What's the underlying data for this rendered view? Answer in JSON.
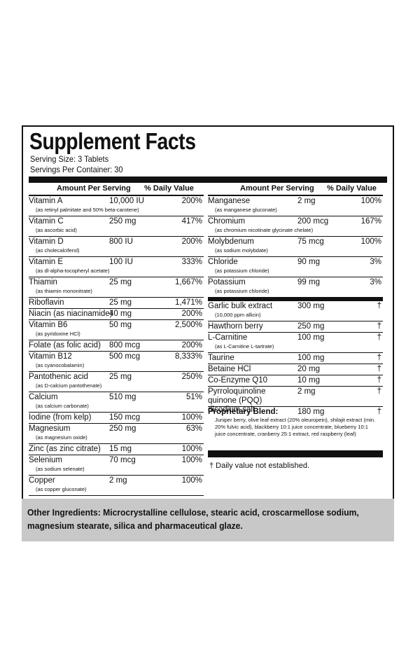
{
  "title": "Supplement Facts",
  "serving_size": "Serving Size: 3 Tablets",
  "servings_per_container": "Servings Per Container: 30",
  "header": {
    "amount": "Amount Per Serving",
    "dv": "% Daily Value"
  },
  "left": [
    {
      "name": "Vitamin A",
      "amount": "10,000 IU",
      "dv": "200%",
      "sub": "(as retinyl palmitate and 50% beta-carotene)"
    },
    {
      "name": "Vitamin C",
      "amount": "250 mg",
      "dv": "417%",
      "sub": "(as ascorbic acid)"
    },
    {
      "name": "Vitamin D",
      "amount": "800 IU",
      "dv": "200%",
      "sub": "(as cholecalciferol)"
    },
    {
      "name": "Vitamin E",
      "amount": "100 IU",
      "dv": "333%",
      "sub": "(as dl-alpha-tocopheryl acetate)"
    },
    {
      "name": "Thiamin",
      "amount": "25 mg",
      "dv": "1,667%",
      "sub": "(as thiamin mononitrate)"
    },
    {
      "name": "Riboflavin",
      "amount": "25 mg",
      "dv": "1,471%",
      "sub": ""
    },
    {
      "name": "Niacin (as niacinamide)",
      "amount": "40 mg",
      "dv": "200%",
      "sub": ""
    },
    {
      "name": "Vitamin B6",
      "amount": "50 mg",
      "dv": "2,500%",
      "sub": "(as pyridoxine HCl)"
    },
    {
      "name": "Folate (as folic acid)",
      "amount": "800 mcg",
      "dv": "200%",
      "sub": ""
    },
    {
      "name": "Vitamin B12",
      "amount": "500 mcg",
      "dv": "8,333%",
      "sub": "(as cyanocobalamin)"
    },
    {
      "name": "Pantothenic acid",
      "amount": "25 mg",
      "dv": "250%",
      "sub": "(as D-calcium pantothenate)"
    },
    {
      "name": "Calcium",
      "amount": "510 mg",
      "dv": "51%",
      "sub": "(as calcium carbonate)"
    },
    {
      "name": "Iodine (from kelp)",
      "amount": "150 mcg",
      "dv": "100%",
      "sub": ""
    },
    {
      "name": "Magnesium",
      "amount": "250 mg",
      "dv": "63%",
      "sub": "(as magnesium oxide)"
    },
    {
      "name": "Zinc (as zinc citrate)",
      "amount": "15 mg",
      "dv": "100%",
      "sub": ""
    },
    {
      "name": "Selenium",
      "amount": "70 mcg",
      "dv": "100%",
      "sub": "(as sodium selenate)"
    },
    {
      "name": "Copper",
      "amount": "2 mg",
      "dv": "100%",
      "sub": "(as copper gluconate)"
    }
  ],
  "right": [
    {
      "name": "Manganese",
      "amount": "2 mg",
      "dv": "100%",
      "sub": "(as manganese gluconate)"
    },
    {
      "name": "Chromium",
      "amount": "200 mcg",
      "dv": "167%",
      "sub": "(as chromium nicotinate glycinate chelate)"
    },
    {
      "name": "Molybdenum",
      "amount": "75 mcg",
      "dv": "100%",
      "sub": "(as sodium molybdate)"
    },
    {
      "name": "Chloride",
      "amount": "90 mg",
      "dv": "3%",
      "sub": "(as potassium chloride)"
    },
    {
      "name": "Potassium",
      "amount": "99 mg",
      "dv": "3%",
      "sub": "(as potassium chloride)"
    },
    {
      "name": "Garlic bulk extract",
      "amount": "300 mg",
      "dv": "†",
      "sub": "(10,000 ppm allicin)"
    },
    {
      "name": "Hawthorn berry",
      "amount": "250 mg",
      "dv": "†",
      "sub": ""
    },
    {
      "name": "L-Carnitine",
      "amount": "100 mg",
      "dv": "†",
      "sub": "(as L-Carnitine L-tartrate)"
    },
    {
      "name": "Taurine",
      "amount": "100 mg",
      "dv": "†",
      "sub": ""
    },
    {
      "name": "Betaine HCl",
      "amount": "20 mg",
      "dv": "†",
      "sub": ""
    },
    {
      "name": "Co-Enzyme Q10",
      "amount": "10 mg",
      "dv": "†",
      "sub": ""
    },
    {
      "name": "Pyrroloquinoline quinone (PQQ) disodium salt",
      "amount": "2 mg",
      "dv": "†",
      "sub": ""
    }
  ],
  "blend": {
    "name": "Proprietary Blend:",
    "amount": "180 mg",
    "dv": "†",
    "sub": "Juniper berry, olive leaf extract (20% oleuropein), shilajit extract (min. 20% fulvic acid), blackberry 10:1 juice concentrate, blueberry 10:1 juice concentrate, cranberry 25:1 extract, red raspberry (leaf)"
  },
  "footnote": "† Daily value not established.",
  "other_ingredients": "Other Ingredients: Microcrystalline cellulose, stearic acid, croscarmellose sodium, magnesium stearate, silica and pharmaceutical glaze."
}
